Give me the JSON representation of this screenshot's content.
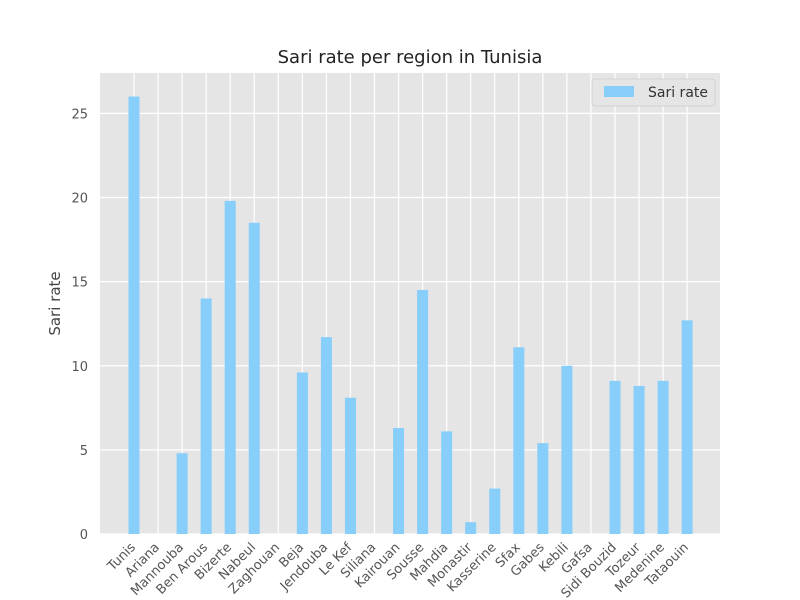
{
  "chart_data": {
    "type": "bar",
    "title": "Sari rate per region in Tunisia",
    "xlabel": "",
    "ylabel": "Sari rate",
    "ylim": [
      0,
      27.4
    ],
    "yticks": [
      0,
      5,
      10,
      15,
      20,
      25
    ],
    "grid": true,
    "legend_position": "top-right",
    "series": [
      {
        "name": "Sari rate",
        "color": "#87CEFA",
        "values": [
          26.0,
          0,
          4.8,
          14.0,
          19.8,
          18.5,
          0,
          9.6,
          11.7,
          8.1,
          0,
          6.3,
          14.5,
          6.1,
          0.7,
          2.7,
          11.1,
          5.4,
          10.0,
          0,
          9.1,
          8.8,
          9.1,
          12.7
        ]
      }
    ],
    "categories": [
      "Tunis",
      "Ariana",
      "Mannouba",
      "Ben Arous",
      "Bizerte",
      "Nabeul",
      "Zaghouan",
      "Beja",
      "Jendouba",
      "Le Kef",
      "Siliana",
      "Kairouan",
      "Sousse",
      "Mahdia",
      "Monastir",
      "Kasserine",
      "Sfax",
      "Gabes",
      "Kebili",
      "Gafsa",
      "Sidi Bouzid",
      "Tozeur",
      "Medenine",
      "Tataouin"
    ],
    "colors": {
      "plot_background": "#E5E5E5",
      "grid": "#FFFFFF",
      "bar": "#87CEFA"
    }
  }
}
